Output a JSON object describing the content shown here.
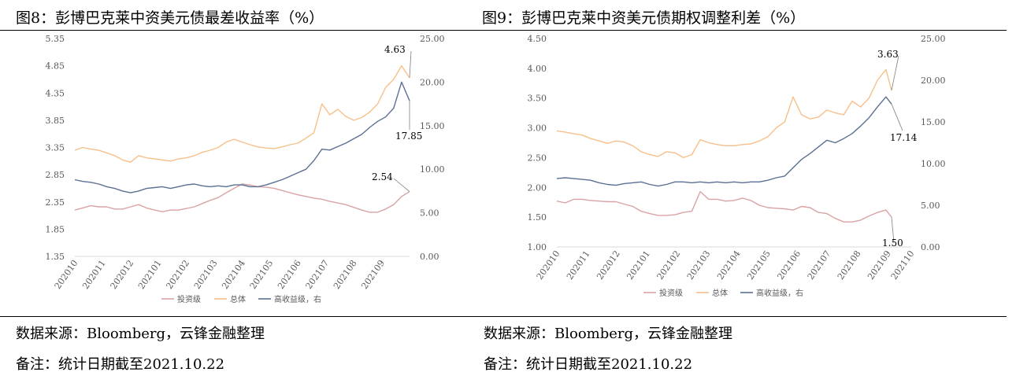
{
  "left": {
    "title": "图8：彭博巴克莱中资美元债最差收益率（%）",
    "source": "数据来源：Bloomberg，云锋金融整理",
    "note": "备注：统计日期截至2021.10.22"
  },
  "right": {
    "title": "图9：彭博巴克莱中资美元债期权调整利差（%）",
    "source": "数据来源：Bloomberg，云锋金融整理",
    "note": "备注：统计日期截至2021.10.22"
  },
  "colors": {
    "investment_grade": "#d9a3a3",
    "total": "#f7c08a",
    "high_yield": "#5b7092",
    "axis": "#d9d9d9",
    "text": "#595959"
  },
  "chart_data": [
    {
      "type": "line",
      "x_tick_labels": [
        "202010",
        "202011",
        "202012",
        "202101",
        "202102",
        "202103",
        "202104",
        "202105",
        "202106",
        "202107",
        "202108",
        "202109"
      ],
      "y_left_ticks": [
        "1.35",
        "1.85",
        "2.35",
        "2.85",
        "3.35",
        "3.85",
        "4.35",
        "4.85",
        "5.35"
      ],
      "y_right_ticks": [
        "0.00",
        "5.00",
        "10.00",
        "15.00",
        "20.00",
        "25.00"
      ],
      "ylim_left": [
        1.35,
        5.35
      ],
      "ylim_right": [
        0,
        25
      ],
      "legend": [
        "投资级",
        "总体",
        "高收益级，右"
      ],
      "legend_position": "bottom",
      "grid": false,
      "annotations": [
        "4.63",
        "17.85",
        "2.54"
      ],
      "series": [
        {
          "name": "投资级",
          "axis": "left",
          "x": [
            0.0,
            0.3,
            0.6,
            0.9,
            1.2,
            1.5,
            1.8,
            2.1,
            2.4,
            2.7,
            3.0,
            3.3,
            3.6,
            3.9,
            4.2,
            4.5,
            4.8,
            5.1,
            5.4,
            5.7,
            6.0,
            6.3,
            6.6,
            6.9,
            7.2,
            7.5,
            7.8,
            8.1,
            8.4,
            8.7,
            9.0,
            9.3,
            9.6,
            9.9,
            10.2,
            10.5,
            10.8,
            11.1,
            11.4,
            11.7,
            12.0,
            12.3,
            12.6
          ],
          "values": [
            2.2,
            2.24,
            2.28,
            2.26,
            2.26,
            2.22,
            2.22,
            2.26,
            2.3,
            2.24,
            2.2,
            2.17,
            2.2,
            2.2,
            2.23,
            2.26,
            2.32,
            2.38,
            2.43,
            2.52,
            2.6,
            2.68,
            2.66,
            2.63,
            2.62,
            2.6,
            2.56,
            2.52,
            2.48,
            2.45,
            2.42,
            2.4,
            2.36,
            2.33,
            2.3,
            2.25,
            2.2,
            2.16,
            2.16,
            2.22,
            2.3,
            2.45,
            2.54
          ]
        },
        {
          "name": "总体",
          "axis": "left",
          "x": [
            0.0,
            0.3,
            0.6,
            0.9,
            1.2,
            1.5,
            1.8,
            2.1,
            2.4,
            2.7,
            3.0,
            3.3,
            3.6,
            3.9,
            4.2,
            4.5,
            4.8,
            5.1,
            5.4,
            5.7,
            6.0,
            6.3,
            6.6,
            6.9,
            7.2,
            7.5,
            7.8,
            8.1,
            8.4,
            8.7,
            9.0,
            9.3,
            9.6,
            9.9,
            10.2,
            10.5,
            10.8,
            11.1,
            11.4,
            11.7,
            12.0,
            12.3,
            12.6
          ],
          "values": [
            3.3,
            3.35,
            3.32,
            3.3,
            3.25,
            3.2,
            3.12,
            3.08,
            3.2,
            3.16,
            3.14,
            3.12,
            3.1,
            3.14,
            3.16,
            3.2,
            3.26,
            3.3,
            3.35,
            3.45,
            3.5,
            3.45,
            3.4,
            3.36,
            3.34,
            3.33,
            3.36,
            3.4,
            3.43,
            3.52,
            3.62,
            4.15,
            3.95,
            4.05,
            3.92,
            3.85,
            3.9,
            4.0,
            4.15,
            4.45,
            4.6,
            4.85,
            4.63
          ]
        },
        {
          "name": "高收益级，右",
          "axis": "right",
          "x": [
            0.0,
            0.3,
            0.6,
            0.9,
            1.2,
            1.5,
            1.8,
            2.1,
            2.4,
            2.7,
            3.0,
            3.3,
            3.6,
            3.9,
            4.2,
            4.5,
            4.8,
            5.1,
            5.4,
            5.7,
            6.0,
            6.3,
            6.6,
            6.9,
            7.2,
            7.5,
            7.8,
            8.1,
            8.4,
            8.7,
            9.0,
            9.3,
            9.6,
            9.9,
            10.2,
            10.5,
            10.8,
            11.1,
            11.4,
            11.7,
            12.0,
            12.3,
            12.6
          ],
          "values": [
            8.8,
            8.6,
            8.5,
            8.3,
            8.0,
            7.8,
            7.5,
            7.3,
            7.5,
            7.8,
            7.9,
            8.0,
            7.8,
            8.0,
            8.2,
            8.3,
            8.1,
            8.0,
            8.1,
            8.0,
            8.2,
            8.2,
            8.0,
            8.0,
            8.2,
            8.5,
            8.8,
            9.2,
            9.6,
            10.0,
            11.0,
            12.3,
            12.2,
            12.6,
            13.0,
            13.5,
            14.0,
            14.8,
            15.5,
            16.0,
            17.0,
            20.0,
            17.85
          ]
        }
      ]
    },
    {
      "type": "line",
      "x_tick_labels": [
        "202010",
        "202011",
        "202012",
        "202101",
        "202102",
        "202103",
        "202104",
        "202105",
        "202106",
        "202107",
        "202108",
        "202109",
        "202110"
      ],
      "y_left_ticks": [
        "1.00",
        "1.50",
        "2.00",
        "2.50",
        "3.00",
        "3.50",
        "4.00",
        "4.50"
      ],
      "y_right_ticks": [
        "0.00",
        "5.00",
        "10.00",
        "15.00",
        "20.00",
        "25.00"
      ],
      "ylim_left": [
        1.0,
        4.5
      ],
      "ylim_right": [
        0,
        25
      ],
      "legend": [
        "投资级",
        "总体",
        "高收益级，右"
      ],
      "legend_position": "bottom",
      "grid": false,
      "annotations": [
        "3.63",
        "17.14",
        "1.50"
      ],
      "series": [
        {
          "name": "投资级",
          "axis": "left",
          "x": [
            0.0,
            0.3,
            0.6,
            0.9,
            1.2,
            1.5,
            1.8,
            2.1,
            2.4,
            2.7,
            3.0,
            3.3,
            3.6,
            3.9,
            4.2,
            4.5,
            4.8,
            5.1,
            5.4,
            5.7,
            6.0,
            6.3,
            6.6,
            6.9,
            7.2,
            7.5,
            7.8,
            8.1,
            8.4,
            8.7,
            9.0,
            9.3,
            9.6,
            9.9,
            10.2,
            10.5,
            10.8,
            11.1,
            11.4,
            11.7,
            11.9
          ],
          "values": [
            1.77,
            1.74,
            1.8,
            1.8,
            1.78,
            1.77,
            1.76,
            1.76,
            1.72,
            1.68,
            1.6,
            1.56,
            1.53,
            1.53,
            1.54,
            1.58,
            1.6,
            1.93,
            1.8,
            1.8,
            1.77,
            1.78,
            1.82,
            1.78,
            1.7,
            1.66,
            1.65,
            1.64,
            1.62,
            1.68,
            1.66,
            1.58,
            1.56,
            1.48,
            1.42,
            1.42,
            1.45,
            1.52,
            1.58,
            1.62,
            1.5
          ]
        },
        {
          "name": "总体",
          "axis": "left",
          "x": [
            0.0,
            0.3,
            0.6,
            0.9,
            1.2,
            1.5,
            1.8,
            2.1,
            2.4,
            2.7,
            3.0,
            3.3,
            3.6,
            3.9,
            4.2,
            4.5,
            4.8,
            5.1,
            5.4,
            5.7,
            6.0,
            6.3,
            6.6,
            6.9,
            7.2,
            7.5,
            7.8,
            8.1,
            8.4,
            8.7,
            9.0,
            9.3,
            9.6,
            9.9,
            10.2,
            10.5,
            10.8,
            11.1,
            11.4,
            11.7,
            11.9
          ],
          "values": [
            2.95,
            2.93,
            2.9,
            2.88,
            2.82,
            2.78,
            2.74,
            2.78,
            2.76,
            2.7,
            2.6,
            2.55,
            2.52,
            2.6,
            2.58,
            2.5,
            2.55,
            2.8,
            2.75,
            2.72,
            2.7,
            2.7,
            2.72,
            2.73,
            2.78,
            2.85,
            3.0,
            3.1,
            3.52,
            3.22,
            3.15,
            3.18,
            3.3,
            3.25,
            3.22,
            3.45,
            3.35,
            3.5,
            3.8,
            3.98,
            3.63
          ]
        },
        {
          "name": "高收益级，右",
          "axis": "right",
          "x": [
            0.0,
            0.3,
            0.6,
            0.9,
            1.2,
            1.5,
            1.8,
            2.1,
            2.4,
            2.7,
            3.0,
            3.3,
            3.6,
            3.9,
            4.2,
            4.5,
            4.8,
            5.1,
            5.4,
            5.7,
            6.0,
            6.3,
            6.6,
            6.9,
            7.2,
            7.5,
            7.8,
            8.1,
            8.4,
            8.7,
            9.0,
            9.3,
            9.6,
            9.9,
            10.2,
            10.5,
            10.8,
            11.1,
            11.4,
            11.7,
            11.9
          ],
          "values": [
            8.2,
            8.3,
            8.2,
            8.1,
            8.0,
            7.7,
            7.5,
            7.4,
            7.6,
            7.7,
            7.8,
            7.5,
            7.3,
            7.5,
            7.8,
            7.8,
            7.7,
            7.8,
            7.7,
            7.8,
            7.7,
            7.8,
            7.7,
            7.8,
            7.8,
            8.0,
            8.3,
            8.5,
            9.5,
            10.5,
            11.2,
            12.0,
            12.8,
            12.5,
            13.0,
            13.6,
            14.5,
            15.5,
            16.8,
            18.0,
            17.14
          ]
        }
      ]
    }
  ]
}
